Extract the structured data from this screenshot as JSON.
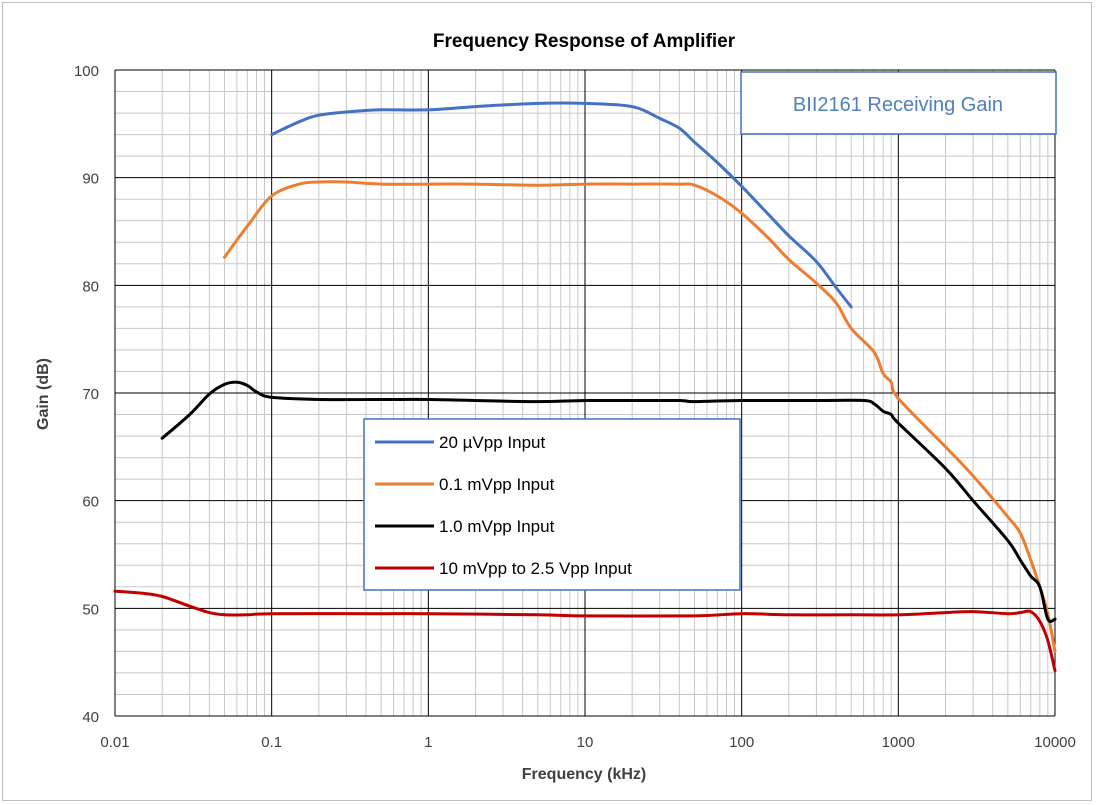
{
  "chart_data": {
    "type": "line",
    "title": "Frequency Response of Amplifier",
    "xlabel": "Frequency (kHz)",
    "ylabel": "Gain (dB)",
    "x_scale": "log",
    "xlim": [
      0.01,
      10000
    ],
    "ylim": [
      40,
      100
    ],
    "x_ticks": [
      "0.01",
      "0.1",
      "1",
      "10",
      "100",
      "1000",
      "10000"
    ],
    "y_ticks": [
      "40",
      "50",
      "60",
      "70",
      "80",
      "90",
      "100"
    ],
    "grid": true,
    "legend_position": "center",
    "annotation": "BII2161 Receiving Gain",
    "series": [
      {
        "name": "20 µVpp Input",
        "color": "#4472C4",
        "points": [
          [
            0.1,
            94
          ],
          [
            0.15,
            95.2
          ],
          [
            0.2,
            95.8
          ],
          [
            0.3,
            96.1
          ],
          [
            0.5,
            96.3
          ],
          [
            1,
            96.3
          ],
          [
            2,
            96.6
          ],
          [
            5,
            96.9
          ],
          [
            10,
            96.9
          ],
          [
            20,
            96.6
          ],
          [
            30,
            95.5
          ],
          [
            40,
            94.6
          ],
          [
            50,
            93.3
          ],
          [
            70,
            91.4
          ],
          [
            100,
            89.2
          ],
          [
            150,
            86.5
          ],
          [
            200,
            84.6
          ],
          [
            300,
            82.2
          ],
          [
            400,
            79.8
          ],
          [
            500,
            78
          ]
        ]
      },
      {
        "name": "0.1 mVpp Input",
        "color": "#ED7D31",
        "points": [
          [
            0.05,
            82.6
          ],
          [
            0.07,
            85.5
          ],
          [
            0.1,
            88.3
          ],
          [
            0.15,
            89.4
          ],
          [
            0.2,
            89.6
          ],
          [
            0.3,
            89.6
          ],
          [
            0.5,
            89.4
          ],
          [
            1,
            89.4
          ],
          [
            2,
            89.4
          ],
          [
            5,
            89.3
          ],
          [
            10,
            89.4
          ],
          [
            20,
            89.4
          ],
          [
            40,
            89.4
          ],
          [
            50,
            89.3
          ],
          [
            70,
            88.3
          ],
          [
            100,
            86.7
          ],
          [
            150,
            84.3
          ],
          [
            200,
            82.4
          ],
          [
            300,
            80.2
          ],
          [
            400,
            78.4
          ],
          [
            500,
            76
          ],
          [
            700,
            73.8
          ],
          [
            800,
            71.8
          ],
          [
            900,
            71
          ],
          [
            1000,
            69.5
          ],
          [
            2000,
            65
          ],
          [
            3000,
            62.3
          ],
          [
            5000,
            58.5
          ],
          [
            6000,
            57
          ],
          [
            7000,
            54.5
          ],
          [
            8000,
            52
          ],
          [
            9000,
            49.5
          ],
          [
            10000,
            46
          ]
        ]
      },
      {
        "name": "1.0 mVpp Input",
        "color": "#000000",
        "points": [
          [
            0.02,
            65.8
          ],
          [
            0.03,
            68
          ],
          [
            0.04,
            69.9
          ],
          [
            0.05,
            70.8
          ],
          [
            0.06,
            71
          ],
          [
            0.07,
            70.7
          ],
          [
            0.08,
            70.1
          ],
          [
            0.1,
            69.6
          ],
          [
            0.2,
            69.4
          ],
          [
            0.5,
            69.4
          ],
          [
            1,
            69.4
          ],
          [
            2,
            69.3
          ],
          [
            5,
            69.2
          ],
          [
            10,
            69.3
          ],
          [
            20,
            69.3
          ],
          [
            40,
            69.3
          ],
          [
            50,
            69.2
          ],
          [
            100,
            69.3
          ],
          [
            300,
            69.3
          ],
          [
            600,
            69.3
          ],
          [
            700,
            69
          ],
          [
            800,
            68.3
          ],
          [
            900,
            68
          ],
          [
            1000,
            67.2
          ],
          [
            2000,
            63
          ],
          [
            3000,
            60
          ],
          [
            5000,
            56.3
          ],
          [
            6000,
            54.5
          ],
          [
            7000,
            53
          ],
          [
            8000,
            52
          ],
          [
            9000,
            49
          ],
          [
            10000,
            49
          ]
        ]
      },
      {
        "name": "10 mVpp to 2.5 Vpp Input",
        "color": "#C00000",
        "points": [
          [
            0.01,
            51.6
          ],
          [
            0.015,
            51.4
          ],
          [
            0.02,
            51.1
          ],
          [
            0.03,
            50.2
          ],
          [
            0.04,
            49.6
          ],
          [
            0.05,
            49.4
          ],
          [
            0.07,
            49.4
          ],
          [
            0.1,
            49.5
          ],
          [
            0.5,
            49.5
          ],
          [
            1,
            49.5
          ],
          [
            5,
            49.4
          ],
          [
            10,
            49.3
          ],
          [
            50,
            49.3
          ],
          [
            100,
            49.5
          ],
          [
            200,
            49.4
          ],
          [
            500,
            49.4
          ],
          [
            1000,
            49.4
          ],
          [
            2000,
            49.6
          ],
          [
            3000,
            49.7
          ],
          [
            5000,
            49.5
          ],
          [
            6000,
            49.6
          ],
          [
            7000,
            49.7
          ],
          [
            8000,
            48.8
          ],
          [
            9000,
            47
          ],
          [
            10000,
            44.2
          ]
        ]
      }
    ]
  }
}
